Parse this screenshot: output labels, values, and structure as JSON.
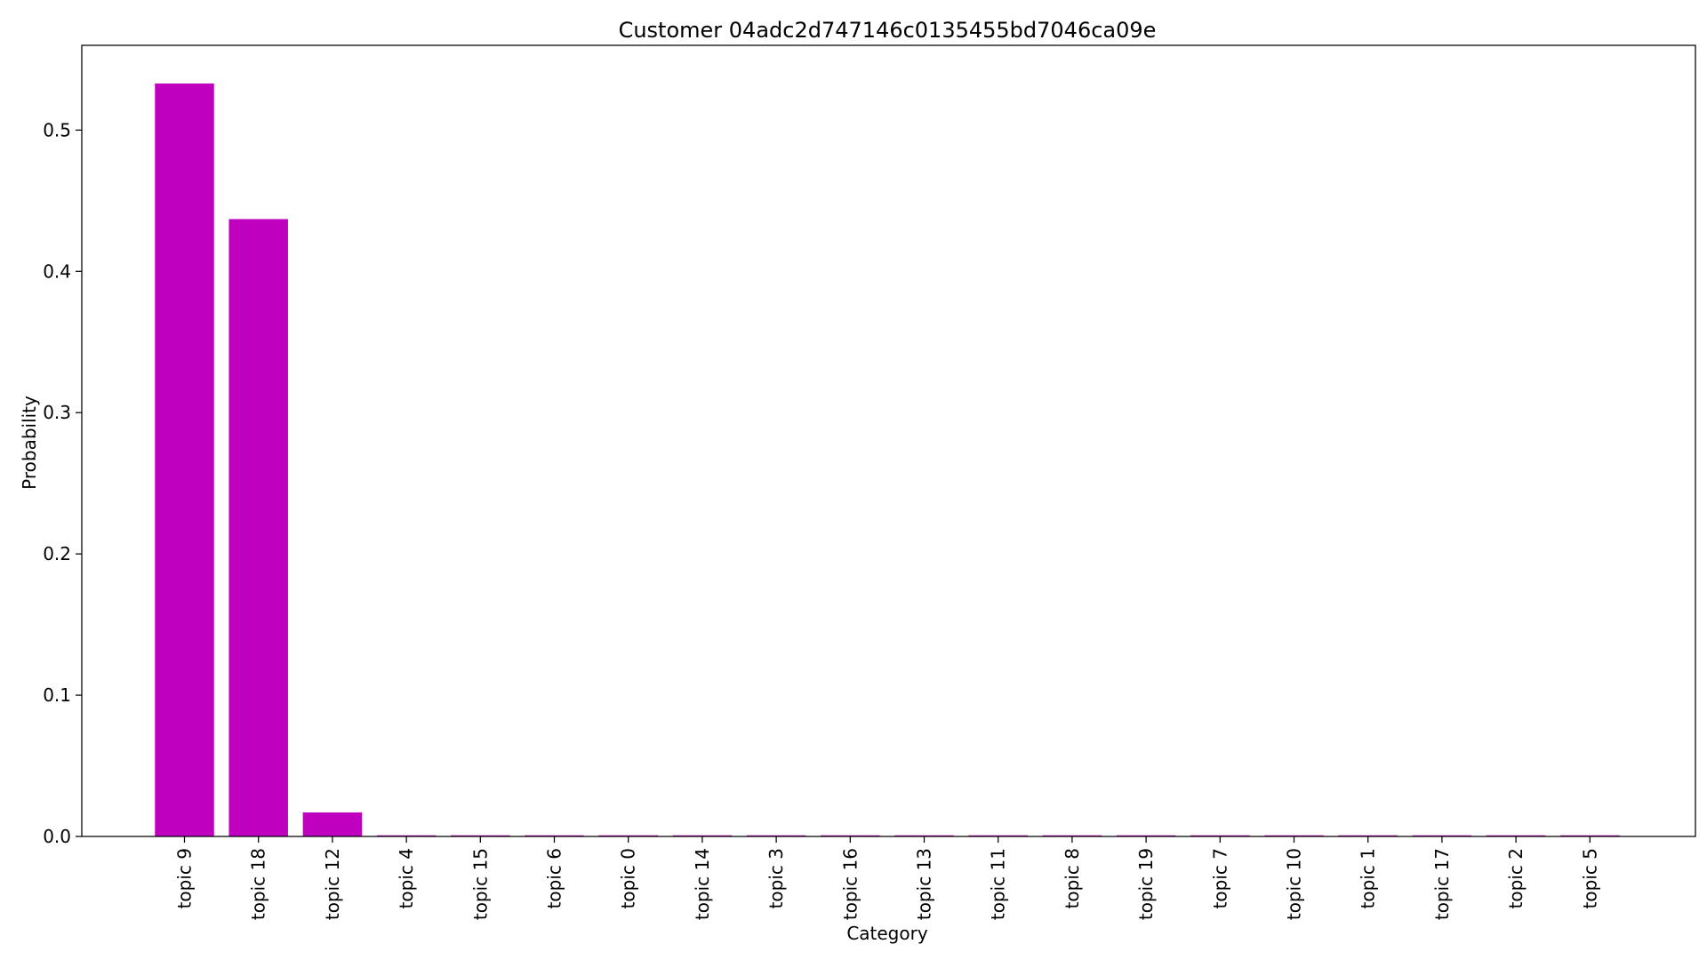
{
  "chart_data": {
    "type": "bar",
    "title": "Customer 04adc2d747146c0135455bd7046ca09e",
    "xlabel": "Category",
    "ylabel": "Probability",
    "categories": [
      "topic 9",
      "topic 18",
      "topic 12",
      "topic 4",
      "topic 15",
      "topic 6",
      "topic 0",
      "topic 14",
      "topic 3",
      "topic 16",
      "topic 13",
      "topic 11",
      "topic 8",
      "topic 19",
      "topic 7",
      "topic 10",
      "topic 1",
      "topic 17",
      "topic 2",
      "topic 5"
    ],
    "values": [
      0.533,
      0.437,
      0.017,
      0.0008,
      0.0008,
      0.0008,
      0.0008,
      0.0008,
      0.0008,
      0.0008,
      0.0008,
      0.0008,
      0.0008,
      0.0008,
      0.0008,
      0.0008,
      0.0008,
      0.0008,
      0.0008,
      0.0008
    ],
    "ylim": [
      0,
      0.56
    ],
    "yticks": [
      0.0,
      0.1,
      0.2,
      0.3,
      0.4,
      0.5
    ],
    "ytick_labels": [
      "0.0",
      "0.1",
      "0.2",
      "0.3",
      "0.4",
      "0.5"
    ],
    "bar_color": "#bf00bf",
    "grid": false,
    "legend": "none"
  }
}
